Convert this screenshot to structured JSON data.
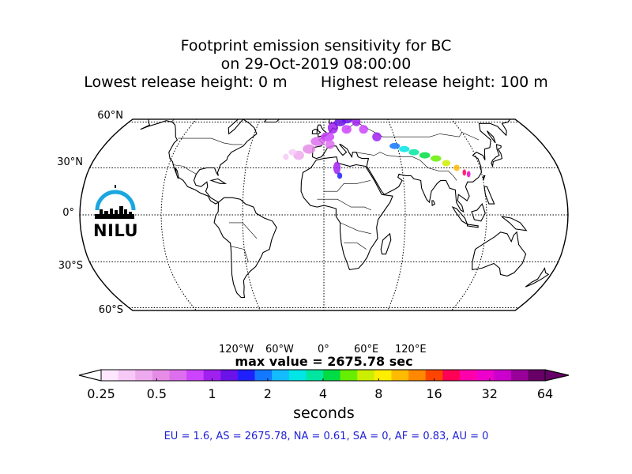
{
  "title": {
    "line1": "Footprint emission sensitivity for BC",
    "line2": "on 29-Oct-2019 08:00:00",
    "line3": "Lowest release height: 0 m       Highest release height: 100 m"
  },
  "map": {
    "projection": "robinson",
    "lat_labels": [
      "60°N",
      "30°N",
      "0°",
      "30°S",
      "60°S"
    ],
    "lon_labels": [
      "120°W",
      "60°W",
      "0°",
      "60°E",
      "120°E"
    ],
    "logo_text": "NILU",
    "max_value_text": "max value = 2675.78 sec"
  },
  "colorbar": {
    "ticks": [
      "0.25",
      "0.5",
      "1",
      "2",
      "4",
      "8",
      "16",
      "32",
      "64"
    ],
    "unit": "seconds",
    "colors": [
      "#ffe8ff",
      "#f7c9f7",
      "#eeaaee",
      "#e68ce6",
      "#dd6fee",
      "#cc44ff",
      "#a020f0",
      "#6a12e8",
      "#2020ff",
      "#1477ff",
      "#14bbff",
      "#00e5e5",
      "#00e6a0",
      "#00dd44",
      "#66ee00",
      "#ccee00",
      "#ffee00",
      "#ffbb00",
      "#ff8800",
      "#ff4400",
      "#ff0055",
      "#ff00aa",
      "#ee00cc",
      "#cc00cc",
      "#990099",
      "#660066"
    ]
  },
  "stats": "EU = 1.6,  AS = 2675.78,  NA = 0.61,  SA = 0,  AF = 0.83,  AU = 0"
}
